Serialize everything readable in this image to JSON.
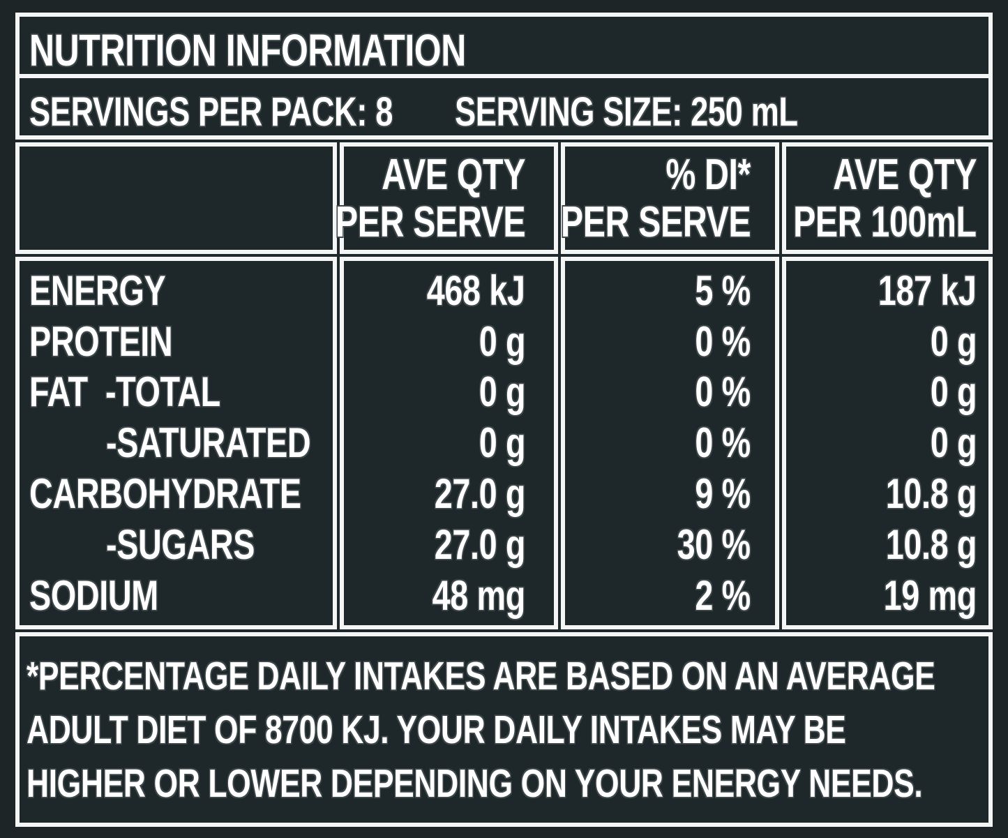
{
  "title": "NUTRITION INFORMATION",
  "servings": {
    "per_pack": "SERVINGS PER PACK: 8",
    "size": "SERVING SIZE: 250 mL"
  },
  "columns": [
    {
      "line1": "AVE QTY",
      "line2": "PER SERVE"
    },
    {
      "line1": "% DI*",
      "line2": "PER SERVE"
    },
    {
      "line1": "AVE QTY",
      "line2": "PER 100mL"
    }
  ],
  "rows": [
    {
      "label": "ENERGY",
      "per_serve": "468 kJ",
      "di": "5 %",
      "per_100": "187 kJ"
    },
    {
      "label": "PROTEIN",
      "per_serve": "0 g",
      "di": "0 %",
      "per_100": "0 g"
    },
    {
      "label": "FAT  -TOTAL",
      "per_serve": "0 g",
      "di": "0 %",
      "per_100": "0 g"
    },
    {
      "label": "-SATURATED",
      "per_serve": "0 g",
      "di": "0 %",
      "per_100": "0 g"
    },
    {
      "label": "CARBOHYDRATE",
      "per_serve": "27.0 g",
      "di": "9 %",
      "per_100": "10.8 g"
    },
    {
      "label": "-SUGARS",
      "per_serve": "27.0 g",
      "di": "30 %",
      "per_100": "10.8 g"
    },
    {
      "label": "SODIUM",
      "per_serve": "48 mg",
      "di": "2 %",
      "per_100": "19 mg"
    }
  ],
  "footnote": {
    "line1": "*PERCENTAGE DAILY INTAKES ARE BASED ON AN AVERAGE",
    "line2": "ADULT DIET OF 8700 KJ. YOUR DAILY INTAKES MAY BE",
    "line3": "HIGHER OR LOWER DEPENDING ON YOUR ENERGY NEEDS."
  },
  "colors": {
    "background": "#1e2729",
    "border": "#f4f6f6",
    "text": "#ffffff"
  }
}
